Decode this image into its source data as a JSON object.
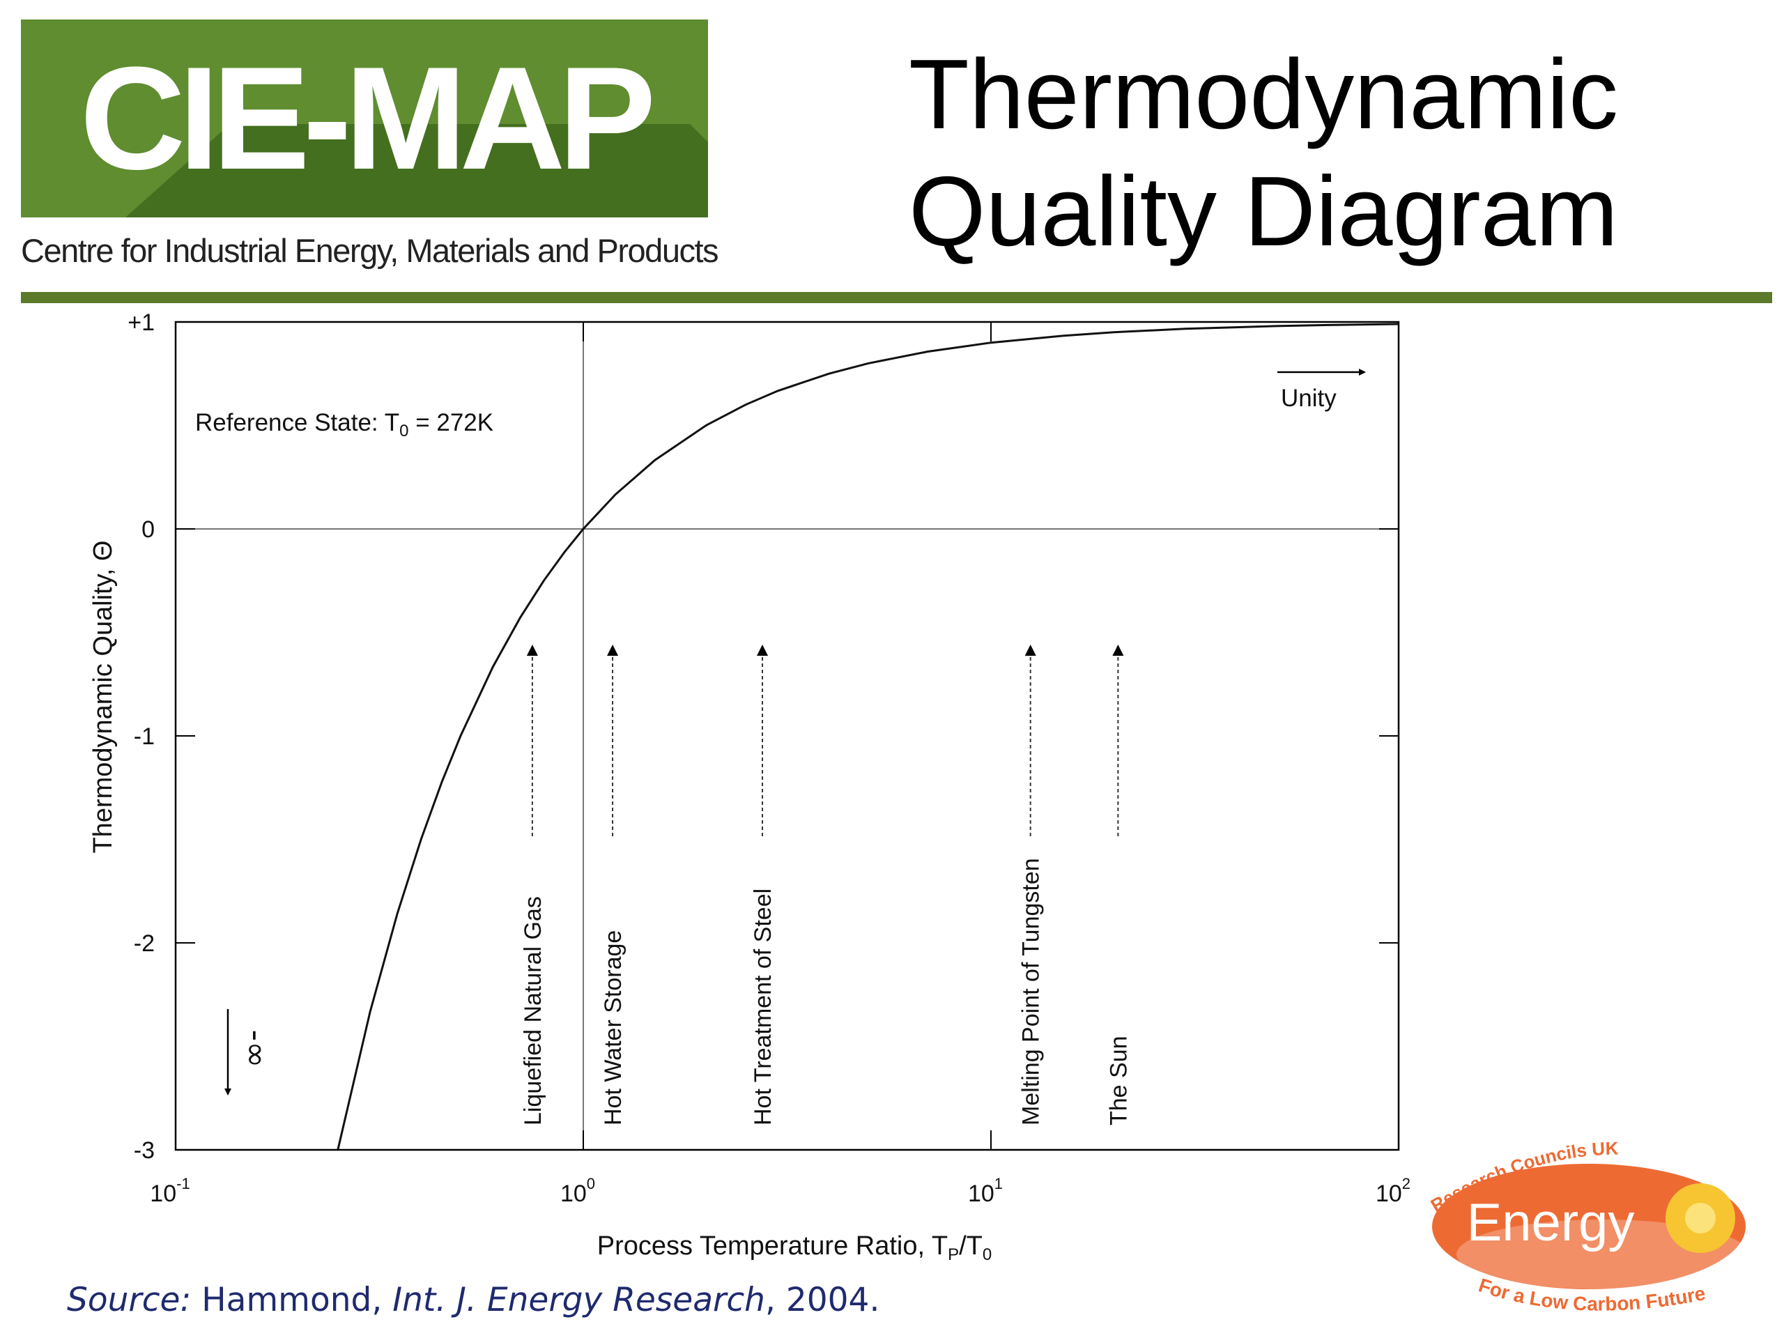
{
  "header": {
    "logo_text": "CIE-MAP",
    "logo_subtitle": "Centre for Industrial Energy, Materials and Products",
    "title_line1": "Thermodynamic",
    "title_line2": "Quality Diagram"
  },
  "colors": {
    "logo_green": "#5f8d2f",
    "logo_green_dark": "#3f6a1c",
    "rule_green": "#5b7a2a",
    "source_blue": "#1f2a6e",
    "energy_orange": "#ee6a33"
  },
  "chart_data": {
    "type": "line",
    "xscale": "log",
    "xlim": [
      0.1,
      100
    ],
    "ylim": [
      -3,
      1
    ],
    "xlabel": "Process Temperature Ratio, T",
    "xlabel_sub_p": "P",
    "xlabel_mid": "/T",
    "xlabel_sub_0": "0",
    "ylabel": "Thermodynamic Quality, Θ",
    "x_ticks": [
      {
        "value": 0.1,
        "base": "10",
        "exp": "-1"
      },
      {
        "value": 1,
        "base": "10",
        "exp": "0"
      },
      {
        "value": 10,
        "base": "10",
        "exp": "1"
      },
      {
        "value": 100,
        "base": "10",
        "exp": "2"
      }
    ],
    "y_ticks": [
      {
        "value": 1,
        "label": "+1"
      },
      {
        "value": 0,
        "label": "0"
      },
      {
        "value": -1,
        "label": "-1"
      },
      {
        "value": -2,
        "label": "-2"
      },
      {
        "value": -3,
        "label": "-3"
      }
    ],
    "series": [
      {
        "function": "1 - 1/x",
        "x": [
          0.25,
          0.3,
          0.35,
          0.4,
          0.45,
          0.5,
          0.6,
          0.7,
          0.8,
          0.9,
          1.0,
          1.2,
          1.5,
          2,
          2.5,
          3,
          4,
          5,
          7,
          10,
          15,
          20,
          30,
          50,
          70,
          100
        ],
        "y": [
          -3.0,
          -2.333,
          -1.857,
          -1.5,
          -1.222,
          -1.0,
          -0.667,
          -0.429,
          -0.25,
          -0.111,
          0.0,
          0.167,
          0.333,
          0.5,
          0.6,
          0.667,
          0.75,
          0.8,
          0.857,
          0.9,
          0.933,
          0.95,
          0.967,
          0.98,
          0.986,
          0.99
        ]
      }
    ],
    "reference_lines": {
      "x": 1,
      "y": 0
    },
    "reference_state_prefix": "Reference State: T",
    "reference_state_sub": "0",
    "reference_state_suffix": " = 272K",
    "unity_label": "Unity",
    "neg_infinity_label": "-∞",
    "applications": [
      {
        "label": "Liquefied  Natural  Gas",
        "x": 0.75
      },
      {
        "label": "Hot  Water  Storage",
        "x": 1.18
      },
      {
        "label": "Hot  Treatment  of  Steel",
        "x": 2.75
      },
      {
        "label": "Melting  Point of  Tungsten",
        "x": 12.5
      },
      {
        "label": "The  Sun",
        "x": 20.5
      }
    ]
  },
  "source": {
    "prefix": "Source:",
    "author": " Hammond, ",
    "journal": "Int. J. Energy Research",
    "year": ", 2004."
  },
  "energy_logo": {
    "top_text": "Research Councils UK",
    "main_text": "Energy",
    "bottom_text": "For a Low Carbon Future"
  }
}
